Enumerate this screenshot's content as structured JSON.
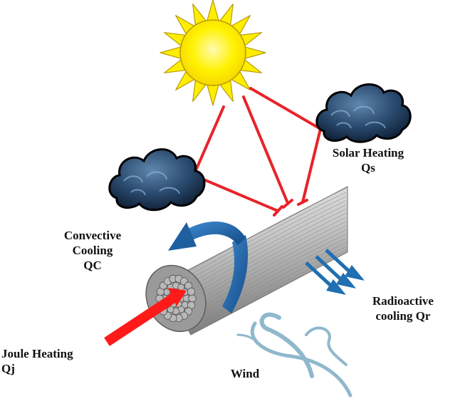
{
  "labels": {
    "solar": {
      "line1": "Solar Heating",
      "line2": "Qs"
    },
    "convective": {
      "line1": "Convective",
      "line2": "Cooling",
      "line3": "QC"
    },
    "radiative": {
      "line1": "Radioactive",
      "line2": "cooling Qr"
    },
    "joule": {
      "line1": "Joule Heating",
      "line2": "Qj"
    },
    "wind": "Wind"
  },
  "colors": {
    "sun_fill": "#ffee00",
    "sun_stroke": "#b89a00",
    "ray_arrow": "#e8232a",
    "cloud_fill": "#1f3c5c",
    "convection_arrow": "#1e5fa0",
    "radiation_arrow": "#1f6fb2",
    "wind": "#8fb8cc",
    "joule_arrow": "#ff1a1a",
    "cable": "#a9a9a9"
  },
  "icons": [
    "sun-icon",
    "cloud-icon",
    "cable-conductor",
    "wind-icon"
  ]
}
